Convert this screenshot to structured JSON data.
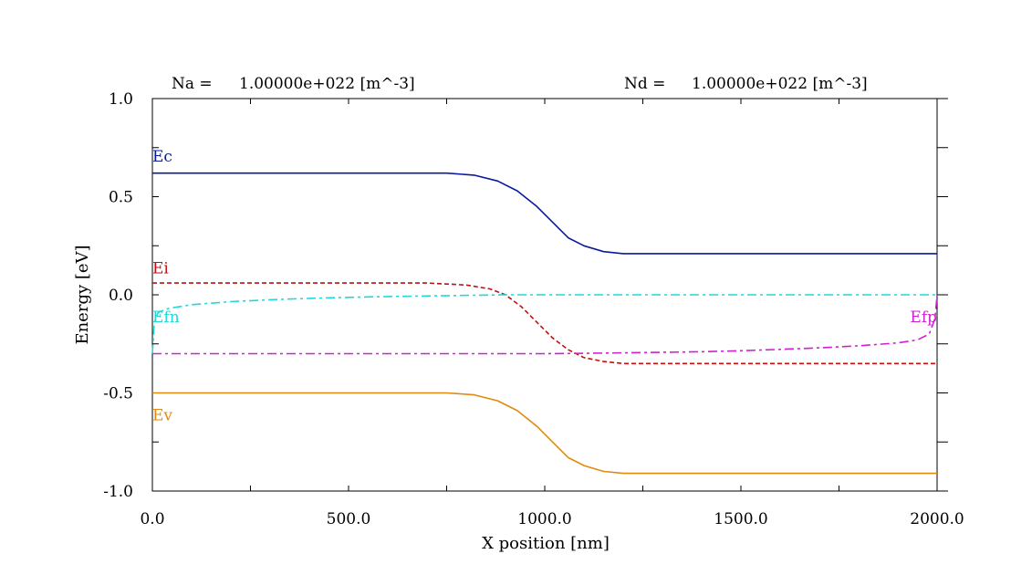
{
  "chart_data": {
    "type": "line",
    "header": {
      "left_label": "Na =",
      "left_value": "1.00000e+022 [m^-3]",
      "right_label": "Nd =",
      "right_value": "1.00000e+022 [m^-3]"
    },
    "xlabel": "X position [nm]",
    "ylabel": "Energy [eV]",
    "xlim": [
      0,
      2000
    ],
    "ylim": [
      -1.0,
      1.0
    ],
    "x_ticks": [
      0,
      500,
      1000,
      1500,
      2000
    ],
    "x_tick_labels": [
      "0.0",
      "500.0",
      "1000.0",
      "1500.0",
      "2000.0"
    ],
    "y_ticks": [
      1.0,
      0.5,
      0.0,
      -0.5,
      -1.0
    ],
    "y_tick_labels": [
      "1.0",
      "0.5",
      "0.0",
      "-0.5",
      "-1.0"
    ],
    "grid": false,
    "series": [
      {
        "name": "Ec",
        "color": "#0a1aa0",
        "dash": "solid",
        "x": [
          0,
          750,
          820,
          880,
          930,
          980,
          1020,
          1060,
          1100,
          1150,
          1200,
          1250,
          1500,
          2000
        ],
        "y": [
          0.62,
          0.62,
          0.61,
          0.58,
          0.53,
          0.45,
          0.37,
          0.29,
          0.25,
          0.22,
          0.21,
          0.21,
          0.21,
          0.21
        ]
      },
      {
        "name": "Ei",
        "color": "#c01010",
        "dash": "dashed",
        "x": [
          0,
          700,
          800,
          860,
          900,
          940,
          980,
          1020,
          1060,
          1100,
          1150,
          1200,
          1250,
          1500,
          2000
        ],
        "y": [
          0.06,
          0.06,
          0.05,
          0.03,
          0.0,
          -0.06,
          -0.14,
          -0.22,
          -0.28,
          -0.32,
          -0.34,
          -0.35,
          -0.35,
          -0.35,
          -0.35
        ]
      },
      {
        "name": "Efn",
        "color": "#22d8d8",
        "dash": "dashdot",
        "x": [
          0,
          5,
          15,
          40,
          100,
          200,
          300,
          400,
          500,
          600,
          700,
          800,
          900,
          1000,
          1500,
          2000
        ],
        "y": [
          -0.3,
          -0.14,
          -0.09,
          -0.07,
          -0.05,
          -0.035,
          -0.025,
          -0.018,
          -0.013,
          -0.009,
          -0.006,
          -0.003,
          0.0,
          0.0,
          0.0,
          0.0
        ]
      },
      {
        "name": "Efp",
        "color": "#d020d0",
        "dash": "dashdot",
        "x": [
          0,
          500,
          1000,
          1100,
          1200,
          1300,
          1400,
          1500,
          1600,
          1700,
          1800,
          1900,
          1950,
          1980,
          1995,
          2000
        ],
        "y": [
          -0.3,
          -0.3,
          -0.3,
          -0.298,
          -0.296,
          -0.293,
          -0.29,
          -0.285,
          -0.278,
          -0.27,
          -0.26,
          -0.245,
          -0.23,
          -0.2,
          -0.12,
          0.0
        ]
      },
      {
        "name": "Ev",
        "color": "#e08a10",
        "dash": "solid",
        "x": [
          0,
          750,
          820,
          880,
          930,
          980,
          1020,
          1060,
          1100,
          1150,
          1200,
          1250,
          1500,
          2000
        ],
        "y": [
          -0.5,
          -0.5,
          -0.51,
          -0.54,
          -0.59,
          -0.67,
          -0.75,
          -0.83,
          -0.87,
          -0.9,
          -0.91,
          -0.91,
          -0.91,
          -0.91
        ]
      }
    ],
    "series_labels": [
      {
        "text": "Ec",
        "color": "#0a1aa0",
        "x": 0,
        "y": 0.68,
        "anchor": "start"
      },
      {
        "text": "Ei",
        "color": "#c01010",
        "x": 0,
        "y": 0.11,
        "anchor": "start"
      },
      {
        "text": "Efn",
        "color": "#22d8d8",
        "x": 0,
        "y": -0.14,
        "anchor": "start"
      },
      {
        "text": "Efp",
        "color": "#d020d0",
        "x": 2000,
        "y": -0.14,
        "anchor": "end"
      },
      {
        "text": "Ev",
        "color": "#e08a10",
        "x": 0,
        "y": -0.64,
        "anchor": "start"
      }
    ]
  }
}
